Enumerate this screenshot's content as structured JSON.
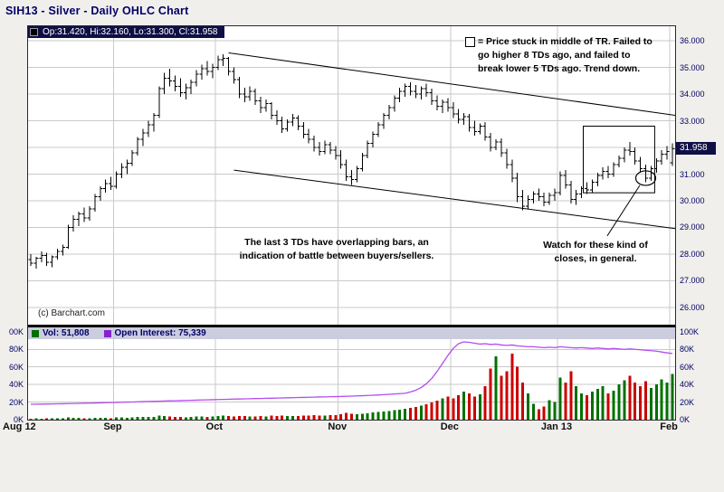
{
  "title": "SIH13 - Silver - Daily OHLC Chart",
  "quote_bar": {
    "text": "Op:31.420, Hi:32.160, Lo:31.300, Cl:31.958"
  },
  "price_tag": "31.958",
  "copyright": "(c) Barchart.com",
  "volume_legend": {
    "vol_label": "Vol: 51,808",
    "oi_label": "Open Interest: 75,339"
  },
  "annotations": {
    "tr_note": {
      "lines": [
        "= Price stuck in middle of TR. Failed to",
        "go higher 8 TDs ago, and failed to",
        "break lower 5 TDs ago.  Trend down."
      ]
    },
    "overlap_note": {
      "lines": [
        "The last 3 TDs have overlapping bars, an",
        "indication of battle between buyers/sellers."
      ]
    },
    "watch_note": {
      "lines": [
        "Watch for these kind of",
        "closes, in general."
      ]
    }
  },
  "colors": {
    "navy": "#000066",
    "tag_bg": "#0f0f46",
    "legend_bg": "#ccccdf",
    "grid": "#c9c9c9",
    "bars": "#000000",
    "up": "#007000",
    "down": "#cc0000",
    "open_interest": "#b44cec",
    "oi_swatch": "#8822cc",
    "page_bg": "#f0efeb",
    "plot_bg": "#ffffff"
  },
  "chart_data": {
    "type": "ohlc",
    "symbol": "SIH13",
    "name": "Silver",
    "period": "Daily",
    "last": {
      "open": 31.42,
      "high": 32.16,
      "low": 31.3,
      "close": 31.958
    },
    "volume_last": 51808,
    "open_interest_last": 75339,
    "price_axis": {
      "ylim": [
        25.35,
        36.55
      ],
      "ticks": [
        {
          "label": "36.000",
          "value": 36
        },
        {
          "label": "35.000",
          "value": 35
        },
        {
          "label": "34.000",
          "value": 34
        },
        {
          "label": "33.000",
          "value": 33
        },
        {
          "label": "32.000",
          "value": 32
        },
        {
          "label": "31.000",
          "value": 31
        },
        {
          "label": "30.000",
          "value": 30
        },
        {
          "label": "29.000",
          "value": 29
        },
        {
          "label": "28.000",
          "value": 28
        },
        {
          "label": "27.000",
          "value": 27
        },
        {
          "label": "26.000",
          "value": 26
        }
      ]
    },
    "volume_axis": {
      "ylim": [
        0,
        105
      ],
      "left_ticks": [
        {
          "label": "00K",
          "value": 100
        },
        {
          "label": "80K",
          "value": 80
        },
        {
          "label": "60K",
          "value": 60
        },
        {
          "label": "40K",
          "value": 40
        },
        {
          "label": "20K",
          "value": 20
        },
        {
          "label": "0K",
          "value": 0
        }
      ],
      "right_ticks": [
        {
          "label": "100K",
          "value": 100
        },
        {
          "label": "80K",
          "value": 80
        },
        {
          "label": "60K",
          "value": 60
        },
        {
          "label": "40K",
          "value": 40
        },
        {
          "label": "20K",
          "value": 20
        },
        {
          "label": "0K",
          "value": 0
        }
      ]
    },
    "months": [
      {
        "label": "Aug 12",
        "start": 0
      },
      {
        "label": "Sep",
        "start": 16
      },
      {
        "label": "Oct",
        "start": 35
      },
      {
        "label": "Nov",
        "start": 58
      },
      {
        "label": "Dec",
        "start": 79
      },
      {
        "label": "Jan 13",
        "start": 99
      },
      {
        "label": "Feb",
        "start": 120
      }
    ],
    "ohlc": [
      [
        27.8,
        28.0,
        27.55,
        27.65
      ],
      [
        27.65,
        27.9,
        27.45,
        27.85
      ],
      [
        27.85,
        28.1,
        27.7,
        27.95
      ],
      [
        27.95,
        28.05,
        27.55,
        27.7
      ],
      [
        27.7,
        27.95,
        27.5,
        27.9
      ],
      [
        27.9,
        28.2,
        27.8,
        28.1
      ],
      [
        28.1,
        28.35,
        27.95,
        28.25
      ],
      [
        28.25,
        29.1,
        28.2,
        29.0
      ],
      [
        29.0,
        29.45,
        28.85,
        29.3
      ],
      [
        29.3,
        29.6,
        29.05,
        29.5
      ],
      [
        29.5,
        29.75,
        29.2,
        29.35
      ],
      [
        29.35,
        29.8,
        29.25,
        29.7
      ],
      [
        29.7,
        30.25,
        29.6,
        30.15
      ],
      [
        30.15,
        30.55,
        30.0,
        30.45
      ],
      [
        30.45,
        30.8,
        30.3,
        30.65
      ],
      [
        30.65,
        30.9,
        30.4,
        30.55
      ],
      [
        30.55,
        31.1,
        30.45,
        31.0
      ],
      [
        31.0,
        31.4,
        30.85,
        31.25
      ],
      [
        31.25,
        31.55,
        31.0,
        31.4
      ],
      [
        31.4,
        31.9,
        31.3,
        31.8
      ],
      [
        31.8,
        32.4,
        31.7,
        32.3
      ],
      [
        32.3,
        32.7,
        32.05,
        32.55
      ],
      [
        32.55,
        33.0,
        32.4,
        32.85
      ],
      [
        32.85,
        33.3,
        32.6,
        33.2
      ],
      [
        33.2,
        34.3,
        33.1,
        34.2
      ],
      [
        34.2,
        34.8,
        34.0,
        34.6
      ],
      [
        34.6,
        34.95,
        34.3,
        34.5
      ],
      [
        34.5,
        34.7,
        34.1,
        34.3
      ],
      [
        34.3,
        34.6,
        33.9,
        34.05
      ],
      [
        34.05,
        34.4,
        33.8,
        34.25
      ],
      [
        34.25,
        34.55,
        34.0,
        34.45
      ],
      [
        34.45,
        34.9,
        34.3,
        34.75
      ],
      [
        34.75,
        35.1,
        34.55,
        34.95
      ],
      [
        34.95,
        35.25,
        34.7,
        34.85
      ],
      [
        34.85,
        35.15,
        34.6,
        35.0
      ],
      [
        35.0,
        35.45,
        34.9,
        35.3
      ],
      [
        35.3,
        35.5,
        35.05,
        35.35
      ],
      [
        35.35,
        35.4,
        34.7,
        34.85
      ],
      [
        34.85,
        35.0,
        34.4,
        34.55
      ],
      [
        34.55,
        34.65,
        33.85,
        34.0
      ],
      [
        34.0,
        34.25,
        33.7,
        33.9
      ],
      [
        33.9,
        34.3,
        33.75,
        34.1
      ],
      [
        34.1,
        34.2,
        33.6,
        33.75
      ],
      [
        33.75,
        33.9,
        33.3,
        33.5
      ],
      [
        33.5,
        33.8,
        33.35,
        33.65
      ],
      [
        33.65,
        33.7,
        33.05,
        33.2
      ],
      [
        33.2,
        33.4,
        32.85,
        33.0
      ],
      [
        33.0,
        33.15,
        32.55,
        32.7
      ],
      [
        32.7,
        33.05,
        32.6,
        32.95
      ],
      [
        32.95,
        33.25,
        32.8,
        33.1
      ],
      [
        33.1,
        33.2,
        32.65,
        32.8
      ],
      [
        32.8,
        32.95,
        32.35,
        32.5
      ],
      [
        32.5,
        32.7,
        32.15,
        32.3
      ],
      [
        32.3,
        32.45,
        31.85,
        32.0
      ],
      [
        32.0,
        32.2,
        31.7,
        31.85
      ],
      [
        31.85,
        32.25,
        31.75,
        32.1
      ],
      [
        32.1,
        32.2,
        31.75,
        31.9
      ],
      [
        31.9,
        32.05,
        31.55,
        31.7
      ],
      [
        31.7,
        31.9,
        31.2,
        31.35
      ],
      [
        31.35,
        31.55,
        30.75,
        30.9
      ],
      [
        30.9,
        31.15,
        30.6,
        30.8
      ],
      [
        30.8,
        31.3,
        30.7,
        31.2
      ],
      [
        31.2,
        31.8,
        31.1,
        31.7
      ],
      [
        31.7,
        32.25,
        31.6,
        32.15
      ],
      [
        32.15,
        32.6,
        32.0,
        32.5
      ],
      [
        32.5,
        32.95,
        32.4,
        32.85
      ],
      [
        32.85,
        33.3,
        32.7,
        33.2
      ],
      [
        33.2,
        33.6,
        33.05,
        33.5
      ],
      [
        33.5,
        33.95,
        33.35,
        33.85
      ],
      [
        33.85,
        34.25,
        33.7,
        34.1
      ],
      [
        34.1,
        34.4,
        33.9,
        34.3
      ],
      [
        34.3,
        34.45,
        33.95,
        34.1
      ],
      [
        34.1,
        34.35,
        33.85,
        34.0
      ],
      [
        34.0,
        34.3,
        33.8,
        34.2
      ],
      [
        34.2,
        34.4,
        33.9,
        34.05
      ],
      [
        34.05,
        34.2,
        33.6,
        33.75
      ],
      [
        33.75,
        33.95,
        33.4,
        33.55
      ],
      [
        33.55,
        33.8,
        33.3,
        33.7
      ],
      [
        33.7,
        33.85,
        33.35,
        33.5
      ],
      [
        33.5,
        33.7,
        33.1,
        33.25
      ],
      [
        33.25,
        33.45,
        32.9,
        33.05
      ],
      [
        33.05,
        33.3,
        32.85,
        33.15
      ],
      [
        33.15,
        33.25,
        32.6,
        32.75
      ],
      [
        32.75,
        33.0,
        32.45,
        32.6
      ],
      [
        32.6,
        32.9,
        32.5,
        32.8
      ],
      [
        32.8,
        32.95,
        32.25,
        32.4
      ],
      [
        32.4,
        32.55,
        31.85,
        32.0
      ],
      [
        32.0,
        32.3,
        31.9,
        32.2
      ],
      [
        32.2,
        32.35,
        31.65,
        31.8
      ],
      [
        31.8,
        31.95,
        31.2,
        31.35
      ],
      [
        31.35,
        31.55,
        30.7,
        30.85
      ],
      [
        30.85,
        31.05,
        29.95,
        30.15
      ],
      [
        30.15,
        30.4,
        29.65,
        29.8
      ],
      [
        29.8,
        30.2,
        29.7,
        30.05
      ],
      [
        30.05,
        30.35,
        29.9,
        30.25
      ],
      [
        30.25,
        30.45,
        30.0,
        30.15
      ],
      [
        30.15,
        30.3,
        29.8,
        29.95
      ],
      [
        29.95,
        30.3,
        29.85,
        30.2
      ],
      [
        30.2,
        30.45,
        30.0,
        30.3
      ],
      [
        30.3,
        31.1,
        30.2,
        30.95
      ],
      [
        30.95,
        31.15,
        30.45,
        30.6
      ],
      [
        30.6,
        30.75,
        29.9,
        30.05
      ],
      [
        30.05,
        30.4,
        29.85,
        30.25
      ],
      [
        30.25,
        30.55,
        30.1,
        30.45
      ],
      [
        30.45,
        30.7,
        30.25,
        30.4
      ],
      [
        30.4,
        30.8,
        30.3,
        30.7
      ],
      [
        30.7,
        31.05,
        30.55,
        30.95
      ],
      [
        30.95,
        31.25,
        30.8,
        31.1
      ],
      [
        31.1,
        31.3,
        30.85,
        31.0
      ],
      [
        31.0,
        31.45,
        30.9,
        31.35
      ],
      [
        31.35,
        31.7,
        31.25,
        31.6
      ],
      [
        31.6,
        32.0,
        31.45,
        31.9
      ],
      [
        31.9,
        32.2,
        31.7,
        31.85
      ],
      [
        31.85,
        32.0,
        31.35,
        31.5
      ],
      [
        31.5,
        31.65,
        31.05,
        31.2
      ],
      [
        31.2,
        31.35,
        30.7,
        30.85
      ],
      [
        30.85,
        31.3,
        30.75,
        31.2
      ],
      [
        31.2,
        31.6,
        31.05,
        31.5
      ],
      [
        31.5,
        31.9,
        31.35,
        31.75
      ],
      [
        31.75,
        32.05,
        31.55,
        31.85
      ],
      [
        31.42,
        32.16,
        31.3,
        31.958
      ]
    ],
    "volume_k": [
      1.2,
      1.5,
      1.1,
      1.4,
      1.3,
      1.6,
      1.8,
      2.5,
      2.2,
      1.9,
      1.7,
      1.6,
      2.0,
      2.3,
      2.1,
      1.8,
      2.4,
      2.6,
      2.3,
      2.8,
      3.2,
      2.9,
      3.0,
      3.3,
      4.5,
      4.0,
      3.6,
      3.2,
      3.0,
      2.8,
      3.1,
      3.4,
      3.7,
      3.3,
      3.5,
      4.2,
      4.5,
      4.0,
      3.8,
      4.3,
      3.9,
      3.6,
      3.8,
      4.1,
      3.7,
      4.4,
      4.0,
      4.6,
      4.2,
      3.9,
      4.1,
      4.5,
      4.8,
      5.2,
      4.7,
      4.4,
      4.9,
      5.1,
      6.0,
      7.5,
      6.5,
      6.2,
      6.8,
      7.4,
      8.0,
      8.6,
      9.2,
      10.0,
      10.8,
      11.5,
      12.5,
      13.5,
      14.5,
      16.0,
      17.5,
      19.5,
      21.5,
      24.0,
      26.0,
      24,
      28,
      32,
      30,
      26,
      29,
      38,
      58,
      72,
      50,
      55,
      75,
      60,
      42,
      30,
      18,
      12,
      15,
      22,
      20,
      48,
      42,
      55,
      38,
      30,
      28,
      32,
      35,
      38,
      30,
      33,
      40,
      45,
      50,
      42,
      38,
      44,
      36,
      40,
      46,
      42,
      51.8
    ],
    "open_interest_k": [
      17.5,
      17.6,
      17.7,
      17.8,
      17.9,
      18.0,
      18.1,
      18.3,
      18.4,
      18.5,
      18.7,
      18.8,
      19.0,
      19.1,
      19.3,
      19.4,
      19.6,
      19.8,
      20.0,
      20.1,
      20.3,
      20.5,
      20.7,
      20.8,
      21.0,
      21.2,
      21.4,
      21.5,
      21.7,
      21.9,
      22.0,
      22.2,
      22.4,
      22.5,
      22.7,
      22.9,
      23.0,
      23.2,
      23.4,
      23.5,
      23.7,
      23.8,
      24.0,
      24.1,
      24.3,
      24.4,
      24.6,
      24.7,
      24.9,
      25.0,
      25.2,
      25.3,
      25.5,
      25.6,
      25.8,
      25.9,
      26.1,
      26.2,
      26.4,
      26.6,
      26.8,
      27.0,
      27.2,
      27.5,
      27.8,
      28.1,
      28.4,
      28.8,
      29.2,
      29.6,
      30.0,
      31.5,
      33.5,
      36.5,
      41.0,
      47.0,
      55.0,
      64.0,
      73.0,
      81.0,
      86.5,
      88.5,
      88.0,
      87.0,
      86.0,
      86.5,
      85.5,
      86.0,
      85.0,
      84.5,
      85.0,
      84.0,
      83.5,
      83.0,
      83.0,
      82.5,
      82.0,
      82.5,
      82.0,
      83.0,
      82.5,
      82.0,
      81.5,
      82.0,
      81.5,
      81.0,
      81.5,
      81.0,
      80.5,
      81.0,
      80.5,
      80.0,
      80.5,
      80.0,
      79.5,
      79.0,
      78.5,
      78.0,
      77.0,
      76.0,
      75.3
    ],
    "trendlines": [
      {
        "from": [
          37,
          35.55
        ],
        "to": [
          120.8,
          33.2
        ]
      },
      {
        "from": [
          38,
          31.15
        ],
        "to": [
          120.8,
          28.95
        ]
      }
    ],
    "range_box": {
      "i1": 104,
      "i2": 116,
      "price_top": 32.8,
      "price_bottom": 30.3
    },
    "circled_bar": {
      "index": 115,
      "price": 30.85
    },
    "pointer_line": {
      "from": [
        107.8,
        28.68
      ],
      "to": [
        113.9,
        30.58
      ]
    }
  }
}
